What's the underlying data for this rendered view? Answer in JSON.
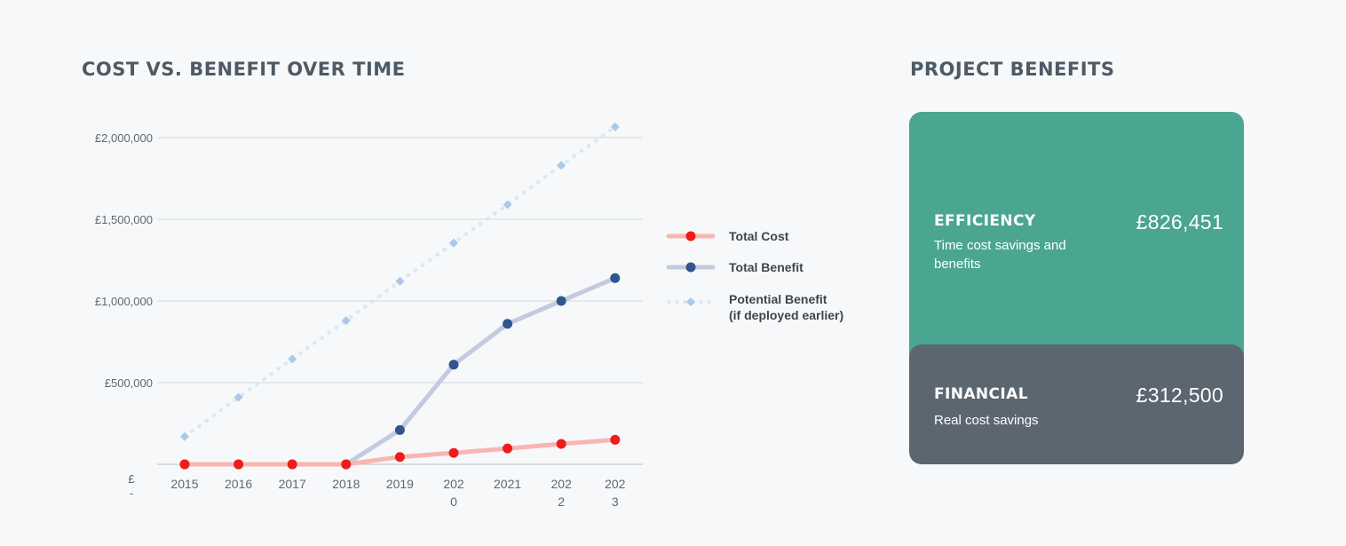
{
  "chart_title": "Cost vs. Benefit Over Time",
  "benefits_title": "Project Benefits",
  "chart_data": {
    "type": "line",
    "categories": [
      "2015",
      "2016",
      "2017",
      "2018",
      "2019",
      "202\n0",
      "2021",
      "202\n2",
      "202\n3"
    ],
    "y_ticks": [
      {
        "value": 0,
        "label": "£\n-"
      },
      {
        "value": 500000,
        "label": "£500,000"
      },
      {
        "value": 1000000,
        "label": "£1,000,000"
      },
      {
        "value": 1500000,
        "label": "£1,500,000"
      },
      {
        "value": 2000000,
        "label": "£2,000,000"
      }
    ],
    "ylim": [
      0,
      2000000
    ],
    "grid": true,
    "legend_position": "right",
    "series": [
      {
        "name": "Total Cost",
        "values": [
          0,
          0,
          0,
          0,
          45000,
          70000,
          97000,
          125000,
          150000
        ],
        "line_color": "#f7b6b2",
        "marker_color": "#ee1c1c",
        "marker": "circle",
        "style": "solid"
      },
      {
        "name": "Total Benefit",
        "values": [
          0,
          0,
          0,
          0,
          210000,
          610000,
          860000,
          1000000,
          1140000
        ],
        "line_color": "#c4cadf",
        "marker_color": "#31558f",
        "marker": "circle",
        "style": "solid"
      },
      {
        "name": "Potential Benefit\n(if deployed earlier)",
        "values": [
          170000,
          410000,
          645000,
          880000,
          1120000,
          1355000,
          1590000,
          1830000,
          2065000
        ],
        "line_color": "#dce7f3",
        "marker_color": "#a9c8ea",
        "marker": "diamond",
        "style": "dotted"
      }
    ]
  },
  "cards": {
    "efficiency": {
      "label": "Efficiency",
      "value": "£826,451",
      "description": "Time cost savings and benefits",
      "color": "#4aa690"
    },
    "financial": {
      "label": "Financial",
      "value": "£312,500",
      "description": "Real cost savings",
      "color": "#5b6670"
    }
  }
}
